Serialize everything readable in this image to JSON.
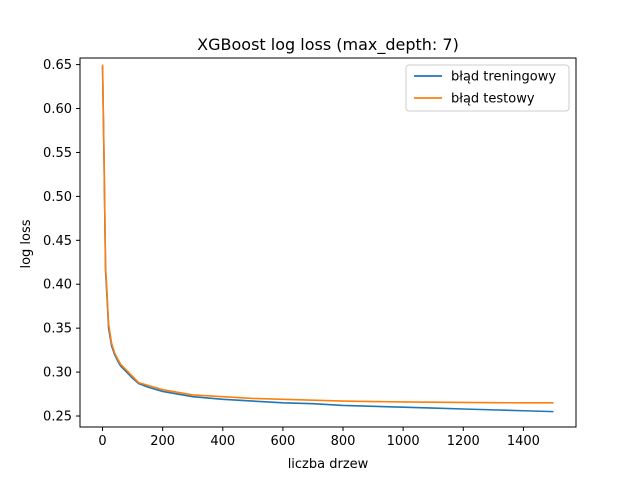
{
  "chart_data": {
    "type": "line",
    "title": "XGBoost log loss (max_depth: 7)",
    "xlabel": "liczba drzew",
    "ylabel": "log loss",
    "xlim": [
      -75,
      1575
    ],
    "ylim": [
      0.2375,
      0.6575
    ],
    "xticks": [
      0,
      200,
      400,
      600,
      800,
      1000,
      1200,
      1400
    ],
    "yticks": [
      0.25,
      0.3,
      0.35,
      0.4,
      0.45,
      0.5,
      0.55,
      0.6,
      0.65
    ],
    "legend_position": "top-right",
    "grid": false,
    "series": [
      {
        "name": "błąd treningowy",
        "color": "#1f77b4",
        "x": [
          0,
          5,
          10,
          15,
          20,
          30,
          40,
          50,
          60,
          80,
          100,
          120,
          150,
          200,
          250,
          300,
          400,
          500,
          600,
          700,
          800,
          900,
          1000,
          1100,
          1200,
          1300,
          1400,
          1500
        ],
        "y": [
          0.648,
          0.54,
          0.415,
          0.385,
          0.35,
          0.33,
          0.32,
          0.313,
          0.307,
          0.3,
          0.293,
          0.287,
          0.283,
          0.278,
          0.275,
          0.272,
          0.269,
          0.267,
          0.265,
          0.264,
          0.262,
          0.261,
          0.26,
          0.259,
          0.258,
          0.257,
          0.256,
          0.255
        ]
      },
      {
        "name": "błąd testowy",
        "color": "#ff7f0e",
        "x": [
          0,
          5,
          10,
          15,
          20,
          30,
          40,
          50,
          60,
          80,
          100,
          120,
          150,
          200,
          250,
          300,
          400,
          500,
          600,
          700,
          800,
          900,
          1000,
          1100,
          1200,
          1300,
          1400,
          1500
        ],
        "y": [
          0.65,
          0.545,
          0.42,
          0.39,
          0.355,
          0.333,
          0.322,
          0.315,
          0.309,
          0.302,
          0.295,
          0.288,
          0.285,
          0.28,
          0.277,
          0.274,
          0.272,
          0.27,
          0.269,
          0.268,
          0.267,
          0.2665,
          0.266,
          0.2658,
          0.2655,
          0.2652,
          0.265,
          0.265
        ]
      }
    ]
  }
}
